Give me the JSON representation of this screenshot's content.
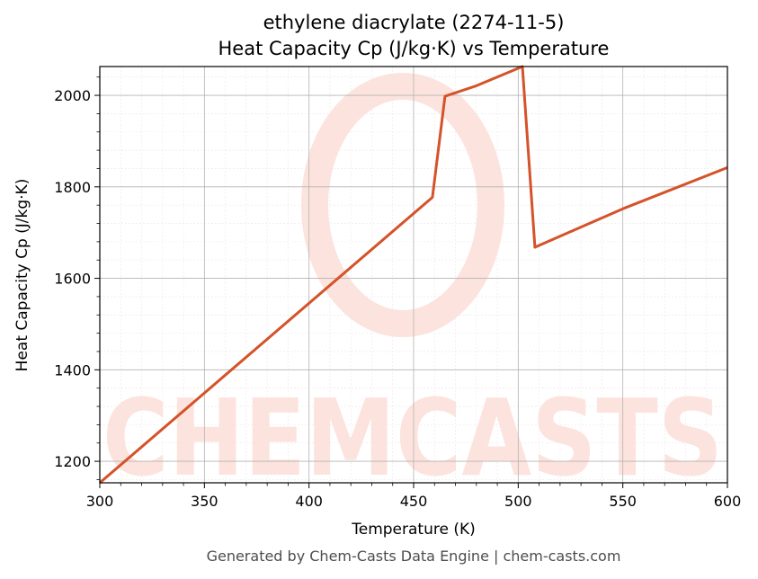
{
  "chart_data": {
    "type": "line",
    "title": "ethylene diacrylate (2274-11-5)",
    "subtitle": "Heat Capacity Cp (J/kg·K) vs Temperature",
    "xlabel": "Temperature (K)",
    "ylabel": "Heat Capacity Cp (J/kg·K)",
    "xlim": [
      300,
      600
    ],
    "ylim": [
      1153,
      2063
    ],
    "x_ticks": [
      300,
      350,
      400,
      450,
      500,
      550,
      600
    ],
    "y_ticks": [
      1200,
      1400,
      1600,
      1800,
      2000
    ],
    "grid": true,
    "line_color": "#d4532a",
    "series": [
      {
        "x": [
          300,
          459,
          465,
          480,
          502,
          508,
          550,
          600
        ],
        "values": [
          1153,
          1777,
          1998,
          2021,
          2063,
          1668,
          1752,
          1842
        ]
      }
    ]
  },
  "watermark": {
    "text": "CHEMCASTS",
    "color": "#fde3dd"
  },
  "footer": "Generated by Chem-Casts Data Engine | chem-casts.com"
}
